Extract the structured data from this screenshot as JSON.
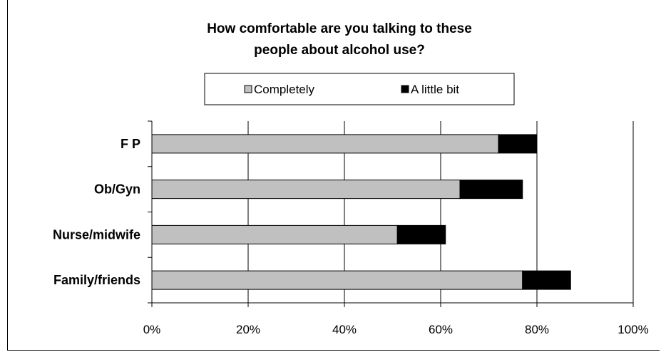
{
  "chart_data": {
    "type": "bar",
    "orientation": "horizontal",
    "stacked": true,
    "title_lines": [
      "How comfortable are you talking to these",
      "people about alcohol use?"
    ],
    "categories": [
      "F P",
      "Ob/Gyn",
      "Nurse/midwife",
      "Family/friends"
    ],
    "series": [
      {
        "name": "Completely",
        "values": [
          72,
          64,
          51,
          77
        ],
        "color": "#c0c0c0"
      },
      {
        "name": "A little bit",
        "values": [
          8,
          13,
          10,
          10
        ],
        "color": "#000000"
      }
    ],
    "x_ticks": [
      "0%",
      "20%",
      "40%",
      "60%",
      "80%",
      "100%"
    ],
    "xlim": [
      0,
      100
    ],
    "grid": "vertical major gridlines",
    "legend_position": "top"
  }
}
